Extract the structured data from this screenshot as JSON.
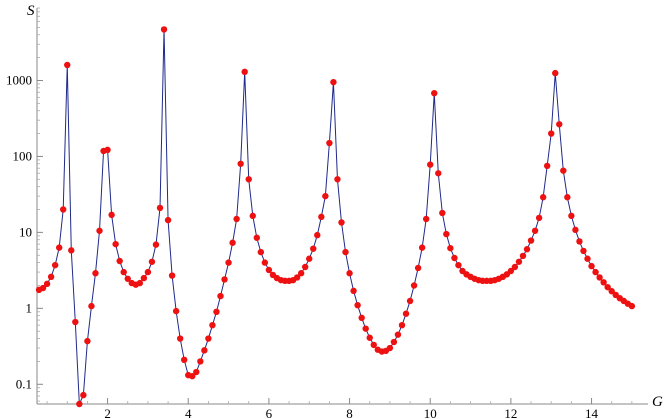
{
  "chart_data": {
    "type": "scatter",
    "title": "",
    "xlabel": "G",
    "ylabel": "S",
    "y_scale": "log",
    "xlim": [
      0.25,
      15.4
    ],
    "ylim": [
      0.055,
      9000
    ],
    "x_ticks": [
      2,
      4,
      6,
      8,
      10,
      12,
      14
    ],
    "x_tick_labels": [
      "2",
      "4",
      "6",
      "8",
      "10",
      "12",
      "14"
    ],
    "y_ticks": [
      0.1,
      1,
      10,
      100,
      1000
    ],
    "y_tick_labels": [
      "0.1",
      "1",
      "10",
      "100",
      "1000"
    ],
    "grid": false,
    "legend": "none",
    "colors": {
      "line": "#1f2a8a",
      "points": "#ee1111",
      "axes": "#888888"
    },
    "series": [
      {
        "marker": "circle",
        "joined": true,
        "points": [
          [
            0.3,
            1.75
          ],
          [
            0.4,
            1.85
          ],
          [
            0.5,
            2.1
          ],
          [
            0.6,
            2.6
          ],
          [
            0.7,
            3.7
          ],
          [
            0.8,
            6.3
          ],
          [
            0.9,
            20
          ],
          [
            1.0,
            1600
          ],
          [
            1.1,
            5.8
          ],
          [
            1.2,
            0.66
          ],
          [
            1.3,
            0.055
          ],
          [
            1.4,
            0.072
          ],
          [
            1.5,
            0.37
          ],
          [
            1.6,
            1.07
          ],
          [
            1.7,
            2.9
          ],
          [
            1.8,
            10.5
          ],
          [
            1.9,
            118
          ],
          [
            2.0,
            122
          ],
          [
            2.1,
            17
          ],
          [
            2.2,
            7.0
          ],
          [
            2.3,
            4.2
          ],
          [
            2.4,
            3.0
          ],
          [
            2.5,
            2.45
          ],
          [
            2.6,
            2.15
          ],
          [
            2.7,
            2.05
          ],
          [
            2.8,
            2.15
          ],
          [
            2.9,
            2.5
          ],
          [
            3.0,
            3.0
          ],
          [
            3.1,
            4.1
          ],
          [
            3.2,
            6.9
          ],
          [
            3.3,
            21
          ],
          [
            3.4,
            4700
          ],
          [
            3.5,
            14.5
          ],
          [
            3.6,
            2.7
          ],
          [
            3.7,
            0.92
          ],
          [
            3.8,
            0.4
          ],
          [
            3.9,
            0.21
          ],
          [
            4.0,
            0.132
          ],
          [
            4.1,
            0.128
          ],
          [
            4.2,
            0.145
          ],
          [
            4.3,
            0.2
          ],
          [
            4.4,
            0.28
          ],
          [
            4.5,
            0.4
          ],
          [
            4.6,
            0.6
          ],
          [
            4.7,
            0.9
          ],
          [
            4.8,
            1.45
          ],
          [
            4.9,
            2.4
          ],
          [
            5.0,
            4.0
          ],
          [
            5.1,
            7.3
          ],
          [
            5.2,
            15
          ],
          [
            5.3,
            80
          ],
          [
            5.4,
            1300
          ],
          [
            5.5,
            50
          ],
          [
            5.6,
            16.5
          ],
          [
            5.7,
            8.5
          ],
          [
            5.8,
            5.5
          ],
          [
            5.9,
            4.0
          ],
          [
            6.0,
            3.2
          ],
          [
            6.1,
            2.75
          ],
          [
            6.2,
            2.5
          ],
          [
            6.3,
            2.35
          ],
          [
            6.4,
            2.3
          ],
          [
            6.5,
            2.3
          ],
          [
            6.6,
            2.35
          ],
          [
            6.7,
            2.55
          ],
          [
            6.8,
            2.9
          ],
          [
            6.9,
            3.5
          ],
          [
            7.0,
            4.5
          ],
          [
            7.1,
            6.1
          ],
          [
            7.2,
            9.2
          ],
          [
            7.3,
            16
          ],
          [
            7.4,
            30
          ],
          [
            7.5,
            150
          ],
          [
            7.6,
            950
          ],
          [
            7.7,
            50
          ],
          [
            7.8,
            13.5
          ],
          [
            7.9,
            5.5
          ],
          [
            8.0,
            2.9
          ],
          [
            8.1,
            1.7
          ],
          [
            8.2,
            1.1
          ],
          [
            8.3,
            0.75
          ],
          [
            8.4,
            0.54
          ],
          [
            8.5,
            0.41
          ],
          [
            8.6,
            0.33
          ],
          [
            8.7,
            0.285
          ],
          [
            8.8,
            0.27
          ],
          [
            8.9,
            0.275
          ],
          [
            9.0,
            0.3
          ],
          [
            9.1,
            0.36
          ],
          [
            9.2,
            0.45
          ],
          [
            9.3,
            0.6
          ],
          [
            9.4,
            0.85
          ],
          [
            9.5,
            1.25
          ],
          [
            9.6,
            2.0
          ],
          [
            9.7,
            3.4
          ],
          [
            9.8,
            6.3
          ],
          [
            9.9,
            15
          ],
          [
            10.0,
            78
          ],
          [
            10.1,
            680
          ],
          [
            10.2,
            60
          ],
          [
            10.3,
            18
          ],
          [
            10.4,
            9.5
          ],
          [
            10.5,
            6.2
          ],
          [
            10.6,
            4.6
          ],
          [
            10.7,
            3.7
          ],
          [
            10.8,
            3.1
          ],
          [
            10.9,
            2.8
          ],
          [
            11.0,
            2.6
          ],
          [
            11.1,
            2.45
          ],
          [
            11.2,
            2.35
          ],
          [
            11.3,
            2.3
          ],
          [
            11.4,
            2.3
          ],
          [
            11.5,
            2.3
          ],
          [
            11.6,
            2.35
          ],
          [
            11.7,
            2.45
          ],
          [
            11.8,
            2.6
          ],
          [
            11.9,
            2.8
          ],
          [
            12.0,
            3.1
          ],
          [
            12.1,
            3.5
          ],
          [
            12.2,
            4.1
          ],
          [
            12.3,
            4.9
          ],
          [
            12.4,
            6.0
          ],
          [
            12.5,
            7.8
          ],
          [
            12.6,
            10.5
          ],
          [
            12.7,
            15.5
          ],
          [
            12.8,
            29
          ],
          [
            12.9,
            75
          ],
          [
            13.0,
            200
          ],
          [
            13.1,
            1250
          ],
          [
            13.2,
            265
          ],
          [
            13.3,
            65
          ],
          [
            13.4,
            29
          ],
          [
            13.5,
            16.5
          ],
          [
            13.6,
            10.8
          ],
          [
            13.7,
            7.6
          ],
          [
            13.8,
            5.7
          ],
          [
            13.9,
            4.5
          ],
          [
            14.0,
            3.6
          ],
          [
            14.1,
            3.0
          ],
          [
            14.2,
            2.55
          ],
          [
            14.3,
            2.2
          ],
          [
            14.4,
            1.9
          ],
          [
            14.5,
            1.68
          ],
          [
            14.6,
            1.5
          ],
          [
            14.7,
            1.36
          ],
          [
            14.8,
            1.25
          ],
          [
            14.9,
            1.15
          ],
          [
            15.0,
            1.07
          ]
        ]
      }
    ]
  }
}
